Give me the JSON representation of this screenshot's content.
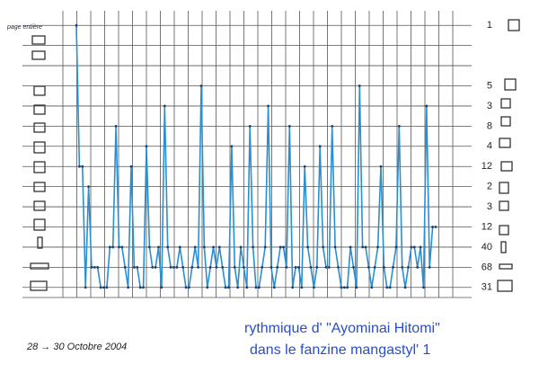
{
  "chart_data": {
    "type": "line",
    "title": "rythmique d' \"Ayominai Hitomi\"",
    "subtitle": "dans le fanzine mangastyl' 1",
    "date_note": "28 → 30 Octobre 2004",
    "top_left_label": "page entière",
    "values": [
      14,
      7,
      7,
      1,
      6,
      2,
      2,
      2,
      1,
      1,
      1,
      3,
      3,
      9,
      3,
      3,
      2,
      1,
      7,
      2,
      2,
      1,
      1,
      8,
      3,
      2,
      2,
      3,
      1,
      10,
      3,
      2,
      2,
      2,
      3,
      2,
      1,
      1,
      2,
      3,
      2,
      11,
      3,
      1,
      2,
      3,
      2,
      3,
      2,
      1,
      1,
      8,
      2,
      1,
      3,
      2,
      1,
      9,
      3,
      1,
      1,
      2,
      3,
      10,
      2,
      1,
      2,
      3,
      3,
      2,
      9,
      1,
      2,
      2,
      1,
      7,
      3,
      2,
      1,
      2,
      8,
      3,
      2,
      2,
      9,
      3,
      2,
      1,
      1,
      1,
      3,
      2,
      1,
      11,
      3,
      3,
      2,
      1,
      2,
      3,
      7,
      2,
      1,
      1,
      2,
      3,
      9,
      2,
      1,
      2,
      3,
      3,
      2,
      3,
      1,
      10,
      2,
      4,
      4
    ],
    "color": "#2a8fd0",
    "ylim": [
      0.5,
      14.5
    ],
    "yticks": [
      1,
      2,
      3,
      4,
      5,
      6,
      7,
      8,
      9,
      10,
      11,
      12,
      13,
      14
    ],
    "grid": true,
    "row_counts": [
      {
        "level": 14,
        "count": 1
      },
      {
        "level": 11,
        "count": 5
      },
      {
        "level": 10,
        "count": 3
      },
      {
        "level": 9,
        "count": 8
      },
      {
        "level": 8,
        "count": 4
      },
      {
        "level": 7,
        "count": 12
      },
      {
        "level": 6,
        "count": 2
      },
      {
        "level": 5,
        "count": 3
      },
      {
        "level": 4,
        "count": 12
      },
      {
        "level": 3,
        "count": 40
      },
      {
        "level": 2,
        "count": 68
      },
      {
        "level": 1,
        "count": 31
      }
    ]
  }
}
